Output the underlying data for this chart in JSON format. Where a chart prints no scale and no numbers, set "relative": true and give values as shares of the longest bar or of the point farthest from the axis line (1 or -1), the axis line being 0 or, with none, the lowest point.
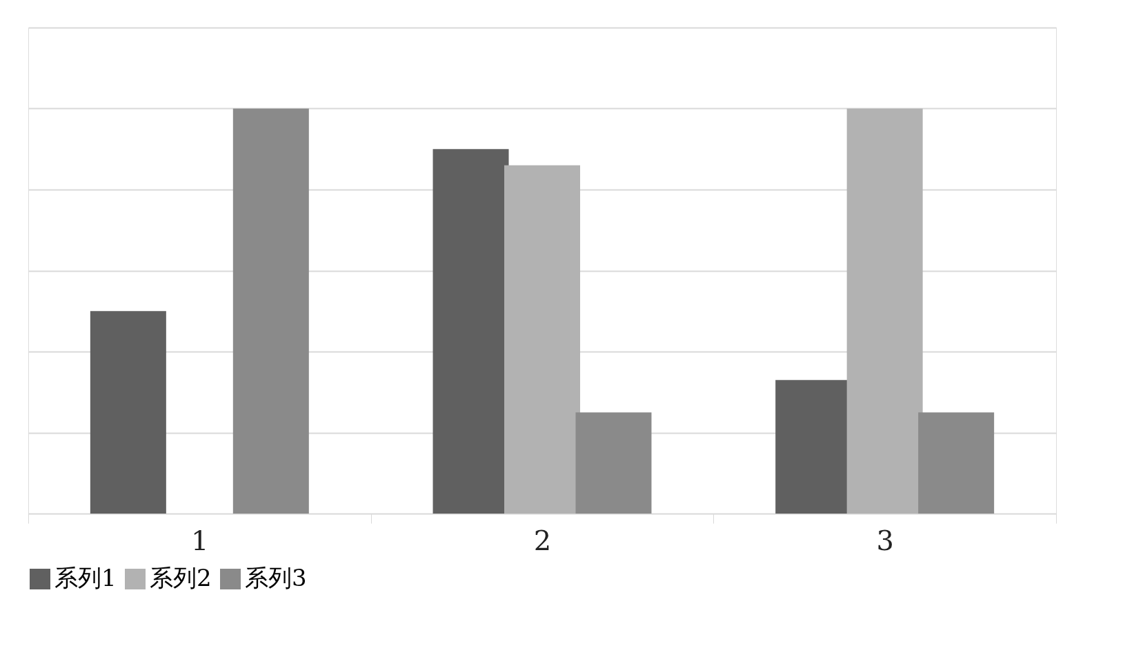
{
  "chart_data": {
    "type": "bar",
    "relative": true,
    "categories": [
      "1",
      "2",
      "3"
    ],
    "series": [
      {
        "name": "系列1",
        "color": "#606060",
        "values": [
          0.5,
          0.9,
          0.33
        ]
      },
      {
        "name": "系列2",
        "color": "#b2b2b2",
        "values": [
          null,
          0.86,
          1
        ]
      },
      {
        "name": "系列3",
        "color": "#8a8a8a",
        "values": [
          1,
          0.25,
          0.25
        ]
      }
    ],
    "grid": "y",
    "legend": "bottom"
  }
}
